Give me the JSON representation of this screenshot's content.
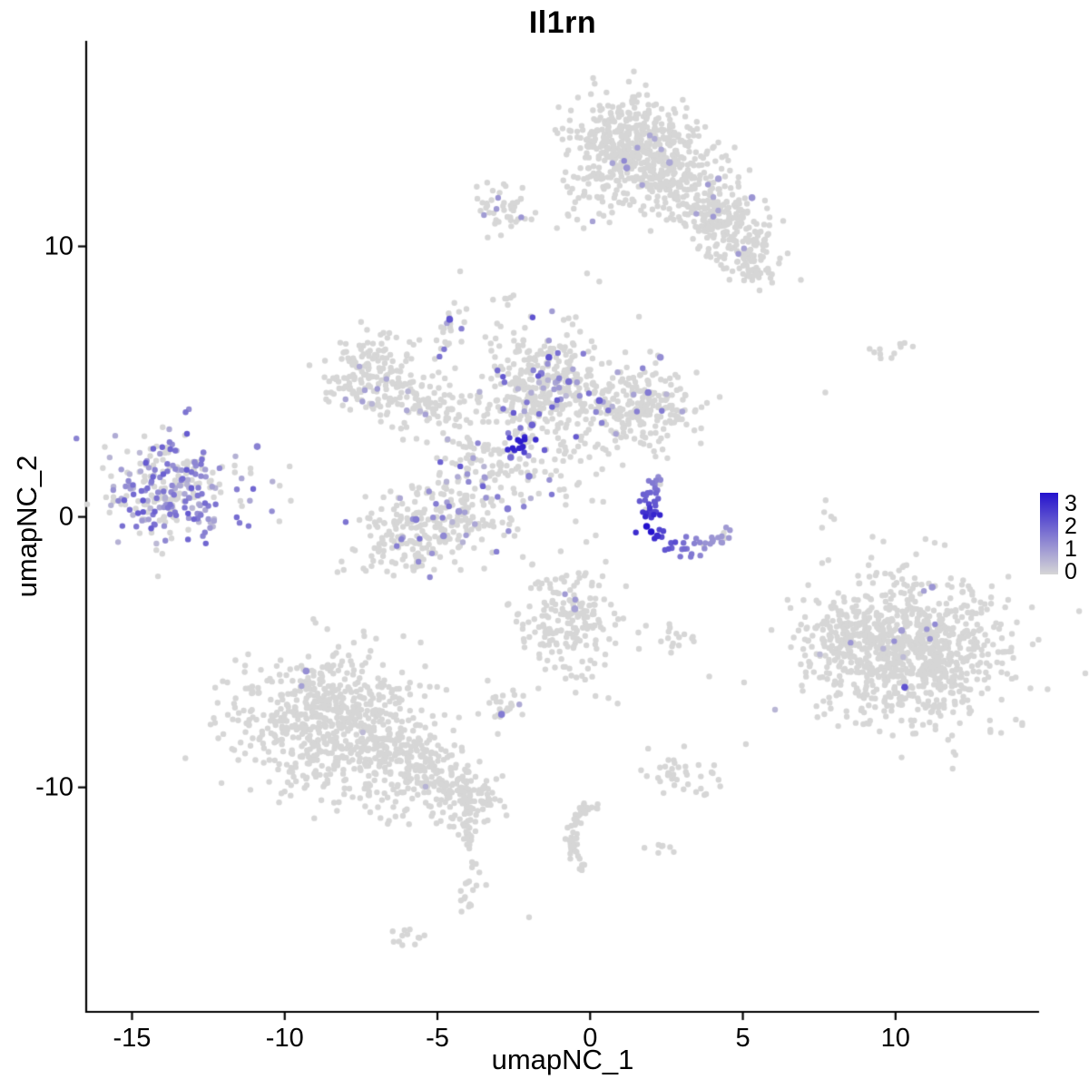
{
  "title": "Il1rn",
  "chart_data": {
    "type": "scatter",
    "title": "Il1rn",
    "xlabel": "umapNC_1",
    "ylabel": "umapNC_2",
    "x_range": [
      -16.5,
      14.7
    ],
    "y_range": [
      -18.3,
      17.6
    ],
    "x_ticks": [
      -15,
      -10,
      -5,
      0,
      5,
      10
    ],
    "y_ticks": [
      -10,
      0,
      10
    ],
    "grid": false,
    "point_radius": 3.2,
    "colors": {
      "low": "#d6d6d6",
      "high": "#2412cd"
    },
    "legend": {
      "position": "right",
      "vmin": 0,
      "vmax": 3,
      "labels": [
        "3",
        "2",
        "1",
        "0"
      ]
    },
    "clusters": [
      {
        "id": "top-main",
        "shape": "blob",
        "cx": 1.3,
        "cy": 13.9,
        "sx": 1.05,
        "sy": 0.85,
        "rot": 0,
        "n": 380,
        "frac": 0.012,
        "vmax": 1.2
      },
      {
        "id": "top-arm1",
        "shape": "blob",
        "cx": 2.9,
        "cy": 12.4,
        "sx": 1.15,
        "sy": 0.7,
        "rot": -30,
        "n": 240,
        "frac": 0.01,
        "vmax": 1.0
      },
      {
        "id": "top-arm2",
        "shape": "blob",
        "cx": 4.35,
        "cy": 10.9,
        "sx": 0.95,
        "sy": 0.6,
        "rot": -35,
        "n": 170,
        "frac": 0.015,
        "vmax": 1.2
      },
      {
        "id": "top-arm-tip",
        "shape": "blob",
        "cx": 5.2,
        "cy": 9.5,
        "sx": 0.55,
        "sy": 0.45,
        "rot": -30,
        "n": 70,
        "frac": 0.01,
        "vmax": 1.0
      },
      {
        "id": "top-satellite",
        "shape": "blob",
        "cx": -2.9,
        "cy": 11.5,
        "sx": 0.5,
        "sy": 0.42,
        "rot": 0,
        "n": 48,
        "frac": 0.05,
        "vmax": 1.3
      },
      {
        "id": "top-bridge",
        "shape": "blob",
        "cx": 0.2,
        "cy": 12.0,
        "sx": 0.8,
        "sy": 0.55,
        "rot": 25,
        "n": 55,
        "frac": 0.01,
        "vmax": 1.0
      },
      {
        "id": "mid-left-blob",
        "shape": "blob",
        "cx": -7.1,
        "cy": 5.3,
        "sx": 0.95,
        "sy": 0.7,
        "rot": 10,
        "n": 170,
        "frac": 0.02,
        "vmax": 1.2
      },
      {
        "id": "mid-left-bridge",
        "shape": "blob",
        "cx": -5.4,
        "cy": 4.3,
        "sx": 0.85,
        "sy": 0.55,
        "rot": -25,
        "n": 90,
        "frac": 0.03,
        "vmax": 1.0
      },
      {
        "id": "mid-spur",
        "shape": "blob",
        "cx": -4.6,
        "cy": 7.0,
        "sx": 0.3,
        "sy": 0.6,
        "rot": -10,
        "n": 26,
        "frac": 0.1,
        "vmax": 1.6
      },
      {
        "id": "mid-central",
        "shape": "blob",
        "cx": -1.4,
        "cy": 4.8,
        "sx": 1.05,
        "sy": 1.0,
        "rot": 0,
        "n": 360,
        "frac": 0.1,
        "vmax": 2.0
      },
      {
        "id": "mid-right-lobe",
        "shape": "blob",
        "cx": 1.7,
        "cy": 4.1,
        "sx": 0.95,
        "sy": 0.75,
        "rot": 0,
        "n": 230,
        "frac": 0.05,
        "vmax": 1.6
      },
      {
        "id": "mid-lower-left",
        "shape": "blob",
        "cx": -5.2,
        "cy": -0.3,
        "sx": 1.25,
        "sy": 0.8,
        "rot": 15,
        "n": 280,
        "frac": 0.09,
        "vmax": 1.6
      },
      {
        "id": "mid-bridge-diag",
        "shape": "blob",
        "cx": -3.3,
        "cy": 2.1,
        "sx": 0.95,
        "sy": 0.95,
        "rot": -45,
        "n": 120,
        "frac": 0.22,
        "vmax": 2.0
      },
      {
        "id": "mid-dark-spot",
        "shape": "blob",
        "cx": -2.32,
        "cy": 2.72,
        "sx": 0.16,
        "sy": 0.16,
        "rot": 0,
        "n": 14,
        "frac": 1.0,
        "vmin": 2.2,
        "vmax": 3.0
      },
      {
        "id": "mid-scatter",
        "shape": "blob",
        "cx": -0.6,
        "cy": 1.4,
        "sx": 0.9,
        "sy": 0.8,
        "rot": 0,
        "n": 35,
        "frac": 0.15,
        "vmax": 1.5
      },
      {
        "id": "left-cluster",
        "shape": "blob",
        "cx": -13.7,
        "cy": 0.9,
        "sx": 1.05,
        "sy": 0.95,
        "rot": 0,
        "n": 280,
        "frac": 0.55,
        "vmax": 1.9
      },
      {
        "id": "left-outliers",
        "shape": "blob",
        "cx": -11.3,
        "cy": 1.0,
        "sx": 0.7,
        "sy": 0.9,
        "rot": 0,
        "n": 10,
        "frac": 0.3,
        "vmax": 1.5
      },
      {
        "id": "crescent",
        "shape": "arc",
        "cx": 3.3,
        "cy": 0.3,
        "r": 1.45,
        "a0": 130,
        "a1": 330,
        "jitter": 0.18,
        "n": 72,
        "frac": 0.9,
        "peak_t": 0.38,
        "base_v": 0.9,
        "peak_v": 3.0
      },
      {
        "id": "bottom-right-main",
        "shape": "blob",
        "cx": 10.7,
        "cy": -5.0,
        "sx": 1.55,
        "sy": 1.35,
        "rot": 0,
        "n": 880,
        "frac": 0.004,
        "vmax": 1.2
      },
      {
        "id": "bottom-right-west",
        "shape": "blob",
        "cx": 8.3,
        "cy": -4.4,
        "sx": 0.8,
        "sy": 0.7,
        "rot": 0,
        "n": 120,
        "frac": 0.005,
        "vmax": 1.0
      },
      {
        "id": "bottom-left-main",
        "shape": "blob",
        "cx": -8.4,
        "cy": -7.6,
        "sx": 1.55,
        "sy": 1.25,
        "rot": 0,
        "n": 680,
        "frac": 0.003,
        "vmax": 1.0
      },
      {
        "id": "bottom-left-arm",
        "shape": "blob",
        "cx": -5.7,
        "cy": -9.3,
        "sx": 1.15,
        "sy": 0.75,
        "rot": -25,
        "n": 240,
        "frac": 0.003,
        "vmax": 1.0
      },
      {
        "id": "bottom-left-knob",
        "shape": "blob",
        "cx": -4.15,
        "cy": -10.3,
        "sx": 0.5,
        "sy": 0.5,
        "rot": 0,
        "n": 90,
        "frac": 0,
        "vmax": 1.0
      },
      {
        "id": "bottom-tail-1",
        "shape": "blob",
        "cx": -4.0,
        "cy": -11.3,
        "sx": 0.18,
        "sy": 0.5,
        "rot": 0,
        "n": 14,
        "frac": 0,
        "vmax": 1.0
      },
      {
        "id": "bottom-tail-2",
        "shape": "blob",
        "cx": -3.85,
        "cy": -12.5,
        "sx": 0.15,
        "sy": 0.5,
        "rot": 0,
        "n": 12,
        "frac": 0,
        "vmax": 1.0
      },
      {
        "id": "bottom-tail-3",
        "shape": "blob",
        "cx": -3.95,
        "cy": -13.8,
        "sx": 0.22,
        "sy": 0.45,
        "rot": 0,
        "n": 14,
        "frac": 0,
        "vmax": 1.0
      },
      {
        "id": "bottom-tip",
        "shape": "blob",
        "cx": -6.1,
        "cy": -15.6,
        "sx": 0.45,
        "sy": 0.22,
        "rot": 10,
        "n": 12,
        "frac": 0,
        "vmax": 1.0
      },
      {
        "id": "mid-lower-blob",
        "shape": "blob",
        "cx": -0.7,
        "cy": -3.8,
        "sx": 0.85,
        "sy": 1.05,
        "rot": 0,
        "n": 200,
        "frac": 0.01,
        "vmax": 1.0
      },
      {
        "id": "sat-small-left",
        "shape": "blob",
        "cx": -2.8,
        "cy": -6.9,
        "sx": 0.4,
        "sy": 0.3,
        "rot": 0,
        "n": 24,
        "frac": 0.05,
        "vmax": 1.5
      },
      {
        "id": "sat-small-right",
        "shape": "blob",
        "cx": 2.9,
        "cy": -9.5,
        "sx": 0.5,
        "sy": 0.35,
        "rot": 0,
        "n": 38,
        "frac": 0,
        "vmax": 1.0
      },
      {
        "id": "snake",
        "shape": "arc",
        "cx": 0.9,
        "cy": -11.9,
        "r": 1.5,
        "a0": 115,
        "a1": 225,
        "jitter": 0.12,
        "n": 55,
        "frac": 0,
        "peak_t": 0.5,
        "base_v": 0,
        "peak_v": 0
      },
      {
        "id": "sat-pair",
        "shape": "blob",
        "cx": 2.2,
        "cy": -12.3,
        "sx": 0.3,
        "sy": 0.2,
        "rot": 0,
        "n": 7,
        "frac": 0,
        "vmax": 1.0
      },
      {
        "id": "sat-mid-small",
        "shape": "blob",
        "cx": 2.7,
        "cy": -4.6,
        "sx": 0.4,
        "sy": 0.28,
        "rot": 0,
        "n": 14,
        "frac": 0,
        "vmax": 1.0
      },
      {
        "id": "sat-upper-right",
        "shape": "blob",
        "cx": 9.7,
        "cy": 6.3,
        "sx": 0.35,
        "sy": 0.3,
        "rot": 0,
        "n": 11,
        "frac": 0,
        "vmax": 1.0
      },
      {
        "id": "sat-right-pair",
        "shape": "blob",
        "cx": 7.9,
        "cy": 0.1,
        "sx": 0.2,
        "sy": 0.3,
        "rot": 0,
        "n": 5,
        "frac": 0,
        "vmax": 1.0
      },
      {
        "id": "top-left-dots",
        "shape": "blob",
        "cx": -2.8,
        "cy": 8.1,
        "sx": 0.35,
        "sy": 0.3,
        "rot": 0,
        "n": 6,
        "frac": 0,
        "vmax": 1.0
      }
    ],
    "sparse_points": [
      [
        7.7,
        4.6
      ],
      [
        7.8,
        -1.6
      ],
      [
        0.3,
        8.7
      ],
      [
        1.6,
        7.4
      ],
      [
        5.1,
        -8.4
      ],
      [
        0.6,
        -6.7
      ],
      [
        0.9,
        -6.9
      ],
      [
        -2.0,
        -14.8
      ],
      [
        -0.1,
        9.0
      ],
      [
        3.9,
        -5.9
      ],
      [
        -9.8,
        0.6
      ],
      [
        -11.4,
        0.4
      ]
    ],
    "highlight_points": [
      [
        1.85,
        -0.35,
        3.0
      ],
      [
        2.0,
        -0.55,
        3.0
      ],
      [
        2.2,
        -0.7,
        2.6
      ],
      [
        -1.35,
        5.9,
        2.0
      ],
      [
        -1.6,
        5.3,
        1.4
      ],
      [
        -0.7,
        5.0,
        1.6
      ],
      [
        0.3,
        4.3,
        1.8
      ],
      [
        1.9,
        4.6,
        1.4
      ],
      [
        2.3,
        5.9,
        1.1
      ],
      [
        -4.6,
        7.3,
        2.0
      ],
      [
        -2.0,
        1.5,
        1.4
      ],
      [
        -2.7,
        0.3,
        1.4
      ],
      [
        -1.9,
        3.4,
        1.8
      ],
      [
        -2.6,
        2.2,
        1.6
      ],
      [
        -5.7,
        -0.1,
        1.4
      ],
      [
        -4.8,
        -0.7,
        1.2
      ],
      [
        -4.3,
        0.2,
        1.0
      ],
      [
        10.3,
        -6.3,
        2.0
      ],
      [
        11.2,
        -2.6,
        1.0
      ],
      [
        10.2,
        -4.2,
        0.9
      ],
      [
        -9.3,
        -5.7,
        1.1
      ],
      [
        -2.9,
        -7.3,
        1.4
      ],
      [
        5.3,
        11.8,
        1.0
      ],
      [
        1.2,
        12.9,
        1.0
      ],
      [
        4.2,
        12.5,
        0.8
      ],
      [
        2.6,
        13.1,
        0.7
      ],
      [
        -10.9,
        2.6,
        1.3
      ],
      [
        -0.5,
        -3.4,
        0.8
      ]
    ]
  }
}
